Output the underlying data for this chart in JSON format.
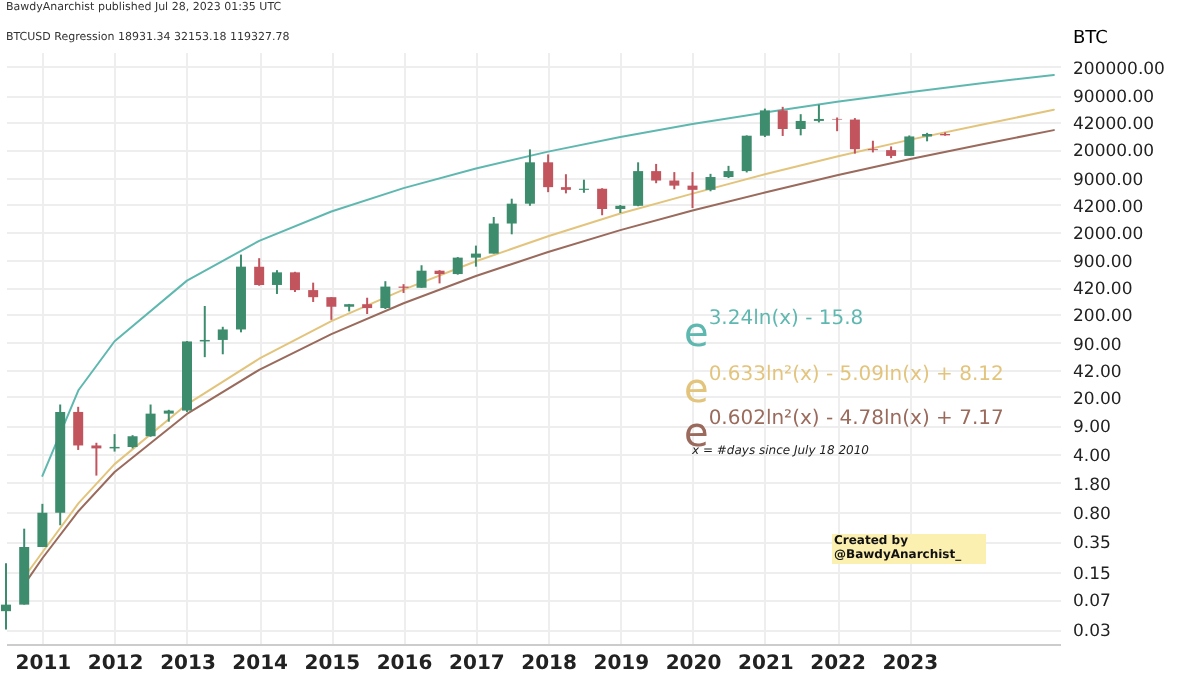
{
  "chart_data": {
    "type": "candlestick",
    "ylabel": "BTC",
    "annotations": [
      "BawdyAnarchist published Jul 28, 2023 01:35 UTC",
      "BTCUSD Regression 18931.34 32153.18 119327.78",
      "e$^{3.24ln(x) - 15.8}$",
      "e$^{0.633ln²(x) - 5.09ln(x) + 8.12}$",
      "e$^{0.602ln²(x) - 4.78ln(x) + 7.17}$",
      "x = #days since July 18 2010",
      "Created by\n@BawdyAnarchist_"
    ],
    "x": [
      "2010-07",
      "2010-10",
      "2011-01",
      "2011-04",
      "2011-07",
      "2011-10",
      "2012-01",
      "2012-04",
      "2012-07",
      "2012-10",
      "2013-01",
      "2013-04",
      "2013-07",
      "2013-10",
      "2014-01",
      "2014-04",
      "2014-07",
      "2014-10",
      "2015-01",
      "2015-04",
      "2015-07",
      "2015-10",
      "2016-01",
      "2016-04",
      "2016-07",
      "2016-10",
      "2017-01",
      "2017-04",
      "2017-07",
      "2017-10",
      "2018-01",
      "2018-04",
      "2018-07",
      "2018-10",
      "2019-01",
      "2019-04",
      "2019-07",
      "2019-10",
      "2020-01",
      "2020-04",
      "2020-07",
      "2020-10",
      "2021-01",
      "2021-04",
      "2021-07",
      "2021-10",
      "2022-01",
      "2022-04",
      "2022-07",
      "2022-10",
      "2023-01",
      "2023-04",
      "2023-07"
    ],
    "ohlc": [
      [
        0.05,
        0.19,
        0.03,
        0.06
      ],
      [
        0.06,
        0.5,
        0.06,
        0.3
      ],
      [
        0.3,
        1.0,
        0.3,
        0.78
      ],
      [
        0.78,
        16,
        0.55,
        13
      ],
      [
        13,
        15,
        4.5,
        5.1
      ],
      [
        5.1,
        5.5,
        2.2,
        4.7
      ],
      [
        4.7,
        7,
        4.3,
        4.9
      ],
      [
        4.9,
        6.8,
        4.7,
        6.6
      ],
      [
        6.6,
        16,
        6.5,
        12.4
      ],
      [
        12.4,
        13.8,
        9.9,
        13.5
      ],
      [
        13.5,
        94,
        13,
        93
      ],
      [
        93,
        250,
        60,
        97
      ],
      [
        97,
        140,
        65,
        130
      ],
      [
        130,
        1050,
        120,
        750
      ],
      [
        750,
        950,
        440,
        450
      ],
      [
        450,
        680,
        350,
        640
      ],
      [
        640,
        650,
        370,
        390
      ],
      [
        390,
        480,
        280,
        320
      ],
      [
        320,
        320,
        170,
        245
      ],
      [
        245,
        265,
        215,
        263
      ],
      [
        263,
        315,
        200,
        236
      ],
      [
        236,
        500,
        230,
        430
      ],
      [
        430,
        460,
        360,
        416
      ],
      [
        416,
        780,
        415,
        670
      ],
      [
        670,
        680,
        470,
        610
      ],
      [
        610,
        980,
        600,
        965
      ],
      [
        965,
        1350,
        750,
        1080
      ],
      [
        1080,
        3000,
        1080,
        2500
      ],
      [
        2500,
        5000,
        1850,
        4350
      ],
      [
        4350,
        19800,
        4100,
        13800
      ],
      [
        13800,
        17200,
        6000,
        6900
      ],
      [
        6900,
        9900,
        5800,
        6400
      ],
      [
        6400,
        8500,
        5900,
        6600
      ],
      [
        6600,
        6700,
        3150,
        3750
      ],
      [
        3750,
        4200,
        3350,
        4100
      ],
      [
        4100,
        13800,
        4050,
        10800
      ],
      [
        10800,
        13200,
        7700,
        8300
      ],
      [
        8300,
        10500,
        6500,
        7200
      ],
      [
        7200,
        10500,
        3850,
        6400
      ],
      [
        6400,
        10000,
        6150,
        9150
      ],
      [
        9150,
        12500,
        8900,
        10800
      ],
      [
        10800,
        29300,
        10400,
        29000
      ],
      [
        29000,
        61800,
        28000,
        58800
      ],
      [
        58800,
        64900,
        28800,
        35000
      ],
      [
        35000,
        52900,
        29300,
        43800
      ],
      [
        43800,
        69000,
        42000,
        46300
      ],
      [
        46300,
        48200,
        32900,
        45500
      ],
      [
        45500,
        47400,
        17600,
        19900
      ],
      [
        19900,
        25200,
        18200,
        19400
      ],
      [
        19400,
        21500,
        15500,
        16500
      ],
      [
        16500,
        29200,
        16500,
        28400
      ],
      [
        28400,
        31400,
        24800,
        30400
      ],
      [
        30400,
        31800,
        29000,
        29300
      ]
    ],
    "colors": [
      "#3d8c6e",
      "#3d8c6e",
      "#3d8c6e",
      "#3d8c6e",
      "#c2545e",
      "#c2545e",
      "#3d8c6e",
      "#3d8c6e",
      "#3d8c6e",
      "#3d8c6e",
      "#3d8c6e",
      "#3d8c6e",
      "#3d8c6e",
      "#3d8c6e",
      "#c2545e",
      "#3d8c6e",
      "#c2545e",
      "#c2545e",
      "#c2545e",
      "#3d8c6e",
      "#c2545e",
      "#3d8c6e",
      "#c2545e",
      "#3d8c6e",
      "#c2545e",
      "#3d8c6e",
      "#3d8c6e",
      "#3d8c6e",
      "#3d8c6e",
      "#3d8c6e",
      "#c2545e",
      "#c2545e",
      "#3d8c6e",
      "#c2545e",
      "#3d8c6e",
      "#3d8c6e",
      "#c2545e",
      "#c2545e",
      "#c2545e",
      "#3d8c6e",
      "#3d8c6e",
      "#3d8c6e",
      "#3d8c6e",
      "#c2545e",
      "#3d8c6e",
      "#3d8c6e",
      "#c2545e",
      "#c2545e",
      "#c2545e",
      "#c2545e",
      "#3d8c6e",
      "#3d8c6e",
      "#c2545e"
    ],
    "series": [
      {
        "type": "line",
        "color": "#5fb8b0",
        "x": [
          "2011-01-01",
          "2011-07-03",
          "2012-01-01",
          "2013-01-01",
          "2014-01-01",
          "2015-01-01",
          "2016-01-01",
          "2017-01-01",
          "2018-01-01",
          "2019-01-01",
          "2020-01-01",
          "2021-01-01",
          "2022-01-01",
          "2023-01-01",
          "2024-01-01",
          "2025-01-01"
        ],
        "values": [
          2.18,
          24.0,
          93.5,
          508,
          1540,
          3500,
          6720,
          11640,
          18600,
          28000,
          40100,
          55300,
          74600,
          97800,
          125500,
          158000
        ]
      },
      {
        "type": "line",
        "color": "#e3c47c",
        "x": [
          "2010-10-01",
          "2011-01-01",
          "2011-07-03",
          "2012-01-01",
          "2013-01-01",
          "2014-01-01",
          "2015-01-01",
          "2016-01-01",
          "2017-01-01",
          "2018-01-01",
          "2019-01-01",
          "2020-01-01",
          "2021-01-01",
          "2022-01-01",
          "2023-01-01",
          "2024-01-01",
          "2025-01-01"
        ],
        "values": [
          0.129,
          0.259,
          1.02,
          3.03,
          16.1,
          57.4,
          164,
          395,
          871,
          1755,
          3300,
          5760,
          9900,
          16200,
          25800,
          39300,
          59900
        ]
      },
      {
        "type": "line",
        "color": "#9a6a5c",
        "x": [
          "2010-10-01",
          "2011-01-01",
          "2011-07-03",
          "2012-01-01",
          "2013-01-01",
          "2014-01-01",
          "2015-01-01",
          "2016-01-01",
          "2017-01-01",
          "2018-01-01",
          "2019-01-01",
          "2020-01-01",
          "2021-01-01",
          "2022-01-01",
          "2023-01-01",
          "2024-01-01",
          "2025-01-01"
        ],
        "values": [
          0.105,
          0.219,
          0.82,
          2.43,
          12.3,
          42.1,
          114,
          270,
          578,
          1130,
          2080,
          3600,
          5940,
          9600,
          15000,
          22700,
          33900
        ]
      }
    ],
    "log": "y",
    "xlim": [
      "2010-07-01",
      "2025-02-01"
    ],
    "xticks": [
      "2011",
      "2012",
      "2013",
      "2014",
      "2015",
      "2016",
      "2017",
      "2018",
      "2019",
      "2020",
      "2021",
      "2022",
      "2023"
    ],
    "ylim": [
      0.02,
      300000
    ],
    "yticks": [
      {
        "value": 200000,
        "label": "200000.00"
      },
      {
        "value": 90000,
        "label": "90000.00"
      },
      {
        "value": 42000,
        "label": "42000.00"
      },
      {
        "value": 20000,
        "label": "20000.00"
      },
      {
        "value": 9000,
        "label": "9000.00"
      },
      {
        "value": 4200,
        "label": "4200.00"
      },
      {
        "value": 2000,
        "label": "2000.00"
      },
      {
        "value": 900,
        "label": "900.00"
      },
      {
        "value": 420,
        "label": "420.00"
      },
      {
        "value": 200,
        "label": "200.00"
      },
      {
        "value": 90,
        "label": "90.00"
      },
      {
        "value": 42,
        "label": "42.00"
      },
      {
        "value": 20,
        "label": "20.00"
      },
      {
        "value": 9,
        "label": "9.00"
      },
      {
        "value": 4,
        "label": "4.00"
      },
      {
        "value": 1.8,
        "label": "1.80"
      },
      {
        "value": 0.8,
        "label": "0.80"
      },
      {
        "value": 0.35,
        "label": "0.35"
      },
      {
        "value": 0.15,
        "label": "0.15"
      },
      {
        "value": 0.07,
        "label": "0.07"
      },
      {
        "value": 0.03,
        "label": "0.03"
      }
    ],
    "grid": true
  }
}
